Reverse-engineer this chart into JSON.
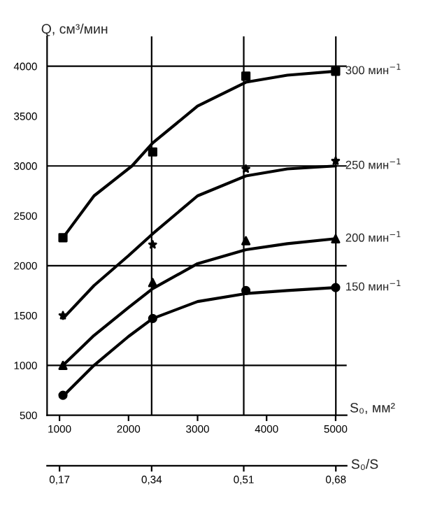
{
  "chart_data": {
    "type": "line",
    "ylabel": "Q, см³/мин",
    "xlabel": "S₀, мм²",
    "x2label": "S₀/S",
    "xlim": [
      820,
      5160
    ],
    "xticks": [
      1000,
      2000,
      3000,
      4000,
      5000
    ],
    "ylim": [
      500,
      4300
    ],
    "yticks": [
      500,
      1000,
      1500,
      2000,
      2500,
      3000,
      3500,
      4000
    ],
    "x2lim": [
      0.147,
      0.7
    ],
    "x2ticks": [
      {
        "value": 0.17,
        "label": "0,17"
      },
      {
        "value": 0.34,
        "label": "0,34"
      },
      {
        "value": 0.51,
        "label": "0,51"
      },
      {
        "value": 0.68,
        "label": "0,68"
      }
    ],
    "ref_lines": [
      {
        "axis": "y",
        "value": 1000,
        "color": "#000000"
      },
      {
        "axis": "y",
        "value": 2000,
        "color": "#000000"
      },
      {
        "axis": "y",
        "value": 3000,
        "color": "#000000"
      },
      {
        "axis": "y",
        "value": 4000,
        "color": "#000000"
      },
      {
        "axis": "x2",
        "value": 0.34,
        "color": "#000000"
      },
      {
        "axis": "x2",
        "value": 0.51,
        "color": "#000000"
      },
      {
        "axis": "x2",
        "value": 0.68,
        "color": "#000000"
      }
    ],
    "series": [
      {
        "name": "300 мин$^{−1}$",
        "color": "#000000",
        "x": [
          1050,
          1500,
          2050,
          2350,
          3000,
          3700,
          4300,
          5000
        ],
        "values": [
          2280,
          2700,
          3000,
          3230,
          3600,
          3840,
          3910,
          3950
        ]
      },
      {
        "name": "250 мин$^{−1}$",
        "color": "#000000",
        "x": [
          1050,
          1500,
          2000,
          2350,
          3000,
          3700,
          4300,
          5000
        ],
        "values": [
          1470,
          1800,
          2100,
          2320,
          2700,
          2900,
          2970,
          3000
        ]
      },
      {
        "name": "200 мин$^{−1}$",
        "color": "#000000",
        "x": [
          1050,
          1500,
          2000,
          2350,
          3000,
          3700,
          4300,
          5000
        ],
        "values": [
          1000,
          1300,
          1580,
          1770,
          2020,
          2160,
          2220,
          2270
        ]
      },
      {
        "name": "150 мин$^{−1}$",
        "color": "#000000",
        "x": [
          1050,
          1500,
          2000,
          2350,
          3000,
          3700,
          4300,
          5000
        ],
        "values": [
          690,
          1000,
          1290,
          1470,
          1640,
          1720,
          1750,
          1780
        ]
      },
      {
        "type": "scatter",
        "marker": "square",
        "color": "#000000",
        "x": [
          1050,
          2350,
          3700,
          5000
        ],
        "values": [
          2280,
          3140,
          3900,
          3950
        ]
      },
      {
        "type": "scatter",
        "marker": "star",
        "color": "#000000",
        "x": [
          1050,
          2350,
          3700,
          5000
        ],
        "values": [
          1500,
          2210,
          2970,
          3050
        ]
      },
      {
        "type": "scatter",
        "marker": "triangle",
        "color": "#000000",
        "x": [
          1050,
          2350,
          3700,
          5000
        ],
        "values": [
          1000,
          1830,
          2250,
          2270
        ]
      },
      {
        "type": "scatter",
        "marker": "circle",
        "color": "#000000",
        "x": [
          1050,
          2350,
          3700,
          5000
        ],
        "values": [
          700,
          1470,
          1750,
          1780
        ]
      }
    ]
  }
}
